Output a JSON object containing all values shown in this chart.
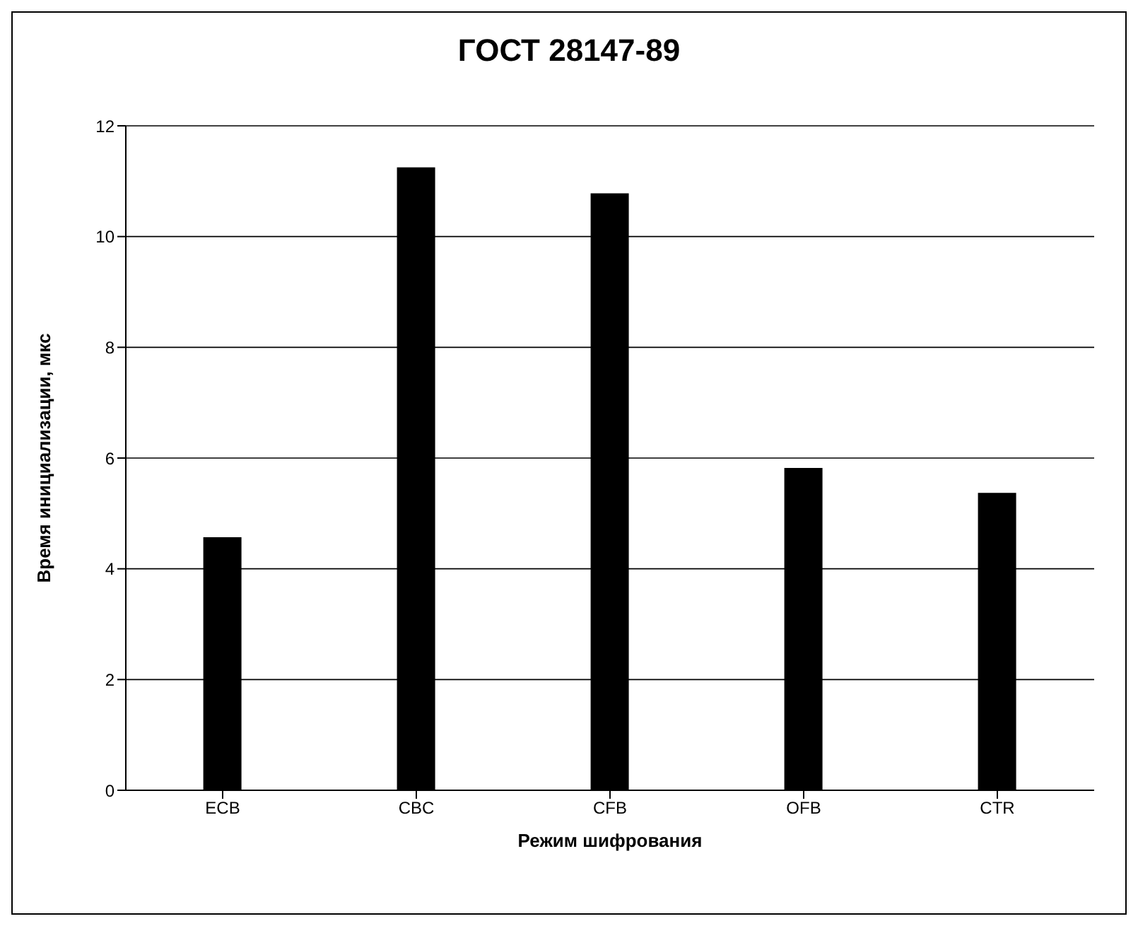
{
  "chart_data": {
    "type": "bar",
    "title": "ГОСТ 28147-89",
    "xlabel": "Режим шифрования",
    "ylabel": "Время инициализации, мкс",
    "categories": [
      "ECB",
      "CBC",
      "CFB",
      "OFB",
      "CTR"
    ],
    "values": [
      4.57,
      11.25,
      10.78,
      5.82,
      5.37
    ],
    "color": "#000000",
    "ylim": [
      0,
      12
    ],
    "yticks": [
      0,
      2,
      4,
      6,
      8,
      10,
      12
    ],
    "grid": "y"
  }
}
